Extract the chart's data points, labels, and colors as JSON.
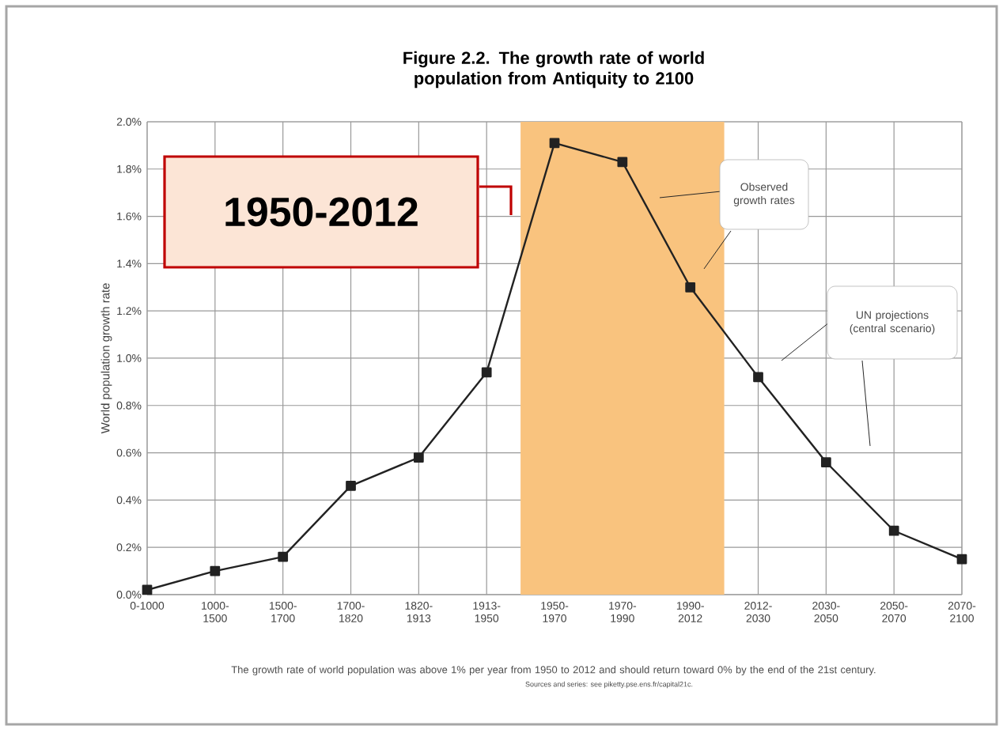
{
  "chart_data": {
    "type": "line",
    "title": "Figure 2.2. The growth rate of world population from Antiquity to 2100",
    "ylabel": "World population growth rate",
    "categories": [
      "0-1000",
      "1000-1500",
      "1500-1700",
      "1700-1820",
      "1820-1913",
      "1913-1950",
      "1950-1970",
      "1970-1990",
      "1990-2012",
      "2012-2030",
      "2030-2050",
      "2050-2070",
      "2070-2100"
    ],
    "series": [
      {
        "color": "#222222",
        "values": [
          0.02,
          0.1,
          0.16,
          0.46,
          0.58,
          0.94,
          1.91,
          1.83,
          1.3,
          0.92,
          0.56,
          0.27,
          0.15
        ]
      }
    ],
    "ylim": [
      0,
      2.0
    ],
    "yticks": [
      {
        "value": 0,
        "label": "0.0%"
      },
      {
        "value": 0.2,
        "label": "0.2%"
      },
      {
        "value": 0.4,
        "label": "0.4%"
      },
      {
        "value": 0.6,
        "label": "0.6%"
      },
      {
        "value": 0.8,
        "label": "0.8%"
      },
      {
        "value": 1.0,
        "label": "1.0%"
      },
      {
        "value": 1.2,
        "label": "1.2%"
      },
      {
        "value": 1.4,
        "label": "1.4%"
      },
      {
        "value": 1.6,
        "label": "1.6%"
      },
      {
        "value": 1.8,
        "label": "1.8%"
      },
      {
        "value": 2.0,
        "label": "2.0%"
      }
    ],
    "bands": [
      {
        "axis": "x",
        "from": "1950-1970",
        "to": "1990-2012",
        "label": "1950-2012",
        "color": "#f9c37e"
      }
    ],
    "annotations": [
      "Observed growth rates",
      "UN projections (central scenario)",
      "The growth rate of world population was above 1% per year from 1950 to 2012 and should return toward 0% by the end of the 21st century.",
      "Sources and series: see piketty.pse.ens.fr/capital21c."
    ],
    "grid": true,
    "marker": "square",
    "line_style": "solid"
  }
}
